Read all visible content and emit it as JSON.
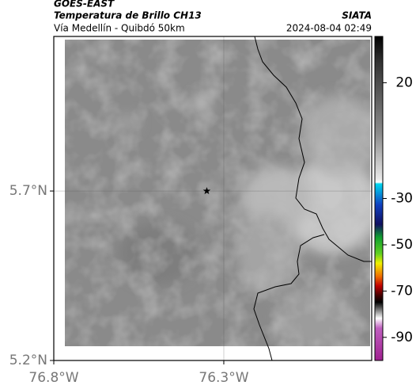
{
  "header": {
    "satellite": "GOES-EAST",
    "product": "Temperatura de Brillo CH13",
    "source": "SIATA",
    "subtitle": "Vía Medellín - Quibdó 50km",
    "datetime": "2024-08-04 02:49"
  },
  "map": {
    "lonlim": [
      -76.8,
      -75.865
    ],
    "latlim": [
      5.2,
      6.156
    ],
    "lonticks": [
      {
        "value": -76.8,
        "label": "76.8°W"
      },
      {
        "value": -76.3,
        "label": "76.3°W"
      }
    ],
    "latticks": [
      {
        "value": 5.2,
        "label": "5.2°N"
      },
      {
        "value": 5.7,
        "label": "5.7°N"
      }
    ],
    "grid": true,
    "marker": {
      "lon": -76.35,
      "lat": 5.7
    }
  },
  "colorbar": {
    "lim": [
      40,
      -100
    ],
    "ticks": [
      20,
      -30,
      -50,
      -70,
      -90
    ]
  }
}
